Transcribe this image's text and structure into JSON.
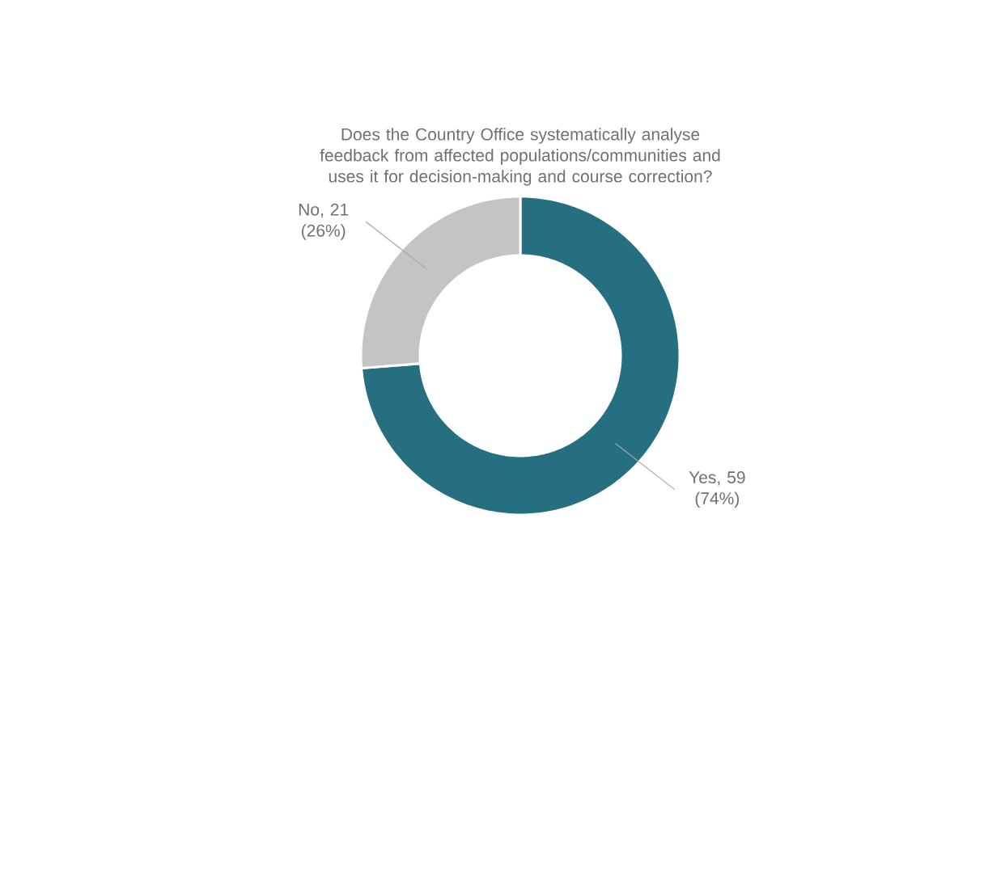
{
  "chart_data": {
    "type": "donut",
    "title": "Does the Country Office systematically analyse feedback from affected populations/communities and uses it for decision-making and course correction?",
    "categories": [
      "Yes",
      "No"
    ],
    "values": [
      59,
      21
    ],
    "value_labels": [
      ", 59 (74%)",
      ", 21 (26%)"
    ],
    "colors": [
      "#266f80",
      "#c4c4c4"
    ]
  }
}
